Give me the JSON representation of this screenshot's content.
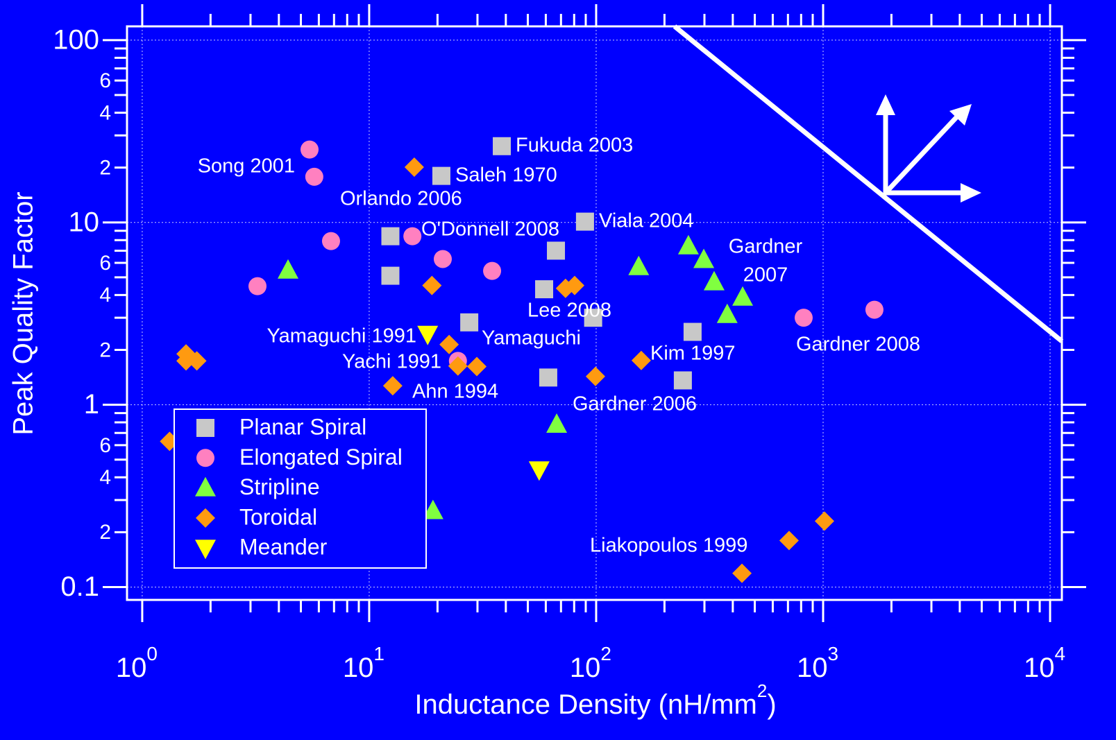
{
  "chart_data": {
    "type": "scatter",
    "ylabel": "Peak Quality Factor",
    "xlabel": "Inductance Density (nH/mm",
    "xlabel_sup": "2",
    "xlabel_end": ")",
    "xscale": "log",
    "yscale": "log",
    "xlim": [
      0.857,
      11270
    ],
    "ylim": [
      0.085,
      119
    ],
    "xticks": [
      {
        "value": 1,
        "label": "10",
        "sup": "0"
      },
      {
        "value": 10,
        "label": "10",
        "sup": "1"
      },
      {
        "value": 100,
        "label": "10",
        "sup": "2"
      },
      {
        "value": 1000,
        "label": "10",
        "sup": "3"
      },
      {
        "value": 10000,
        "label": "10",
        "sup": "4"
      }
    ],
    "xminorticks": [
      2,
      3,
      4,
      5,
      6,
      7,
      8,
      9,
      20,
      30,
      40,
      50,
      60,
      70,
      80,
      90,
      200,
      300,
      400,
      500,
      600,
      700,
      800,
      900,
      2000,
      3000,
      4000,
      5000,
      6000,
      7000,
      8000,
      9000
    ],
    "yticks": [
      0.1,
      {
        "value": 0.2,
        "label": "2"
      },
      {
        "value": 0.4,
        "label": "4"
      },
      {
        "value": 0.6,
        "label": "6"
      },
      1,
      2,
      4,
      6,
      10,
      {
        "value": 20,
        "label": "2"
      },
      {
        "value": 40,
        "label": "4"
      },
      {
        "value": 60,
        "label": "6"
      },
      100
    ],
    "yminorticks": [
      0.3,
      0.5,
      0.7,
      0.8,
      0.9,
      3,
      5,
      7,
      8,
      9,
      30,
      50,
      70,
      80,
      90
    ],
    "grid": true,
    "legend": "lower left",
    "series": [
      {
        "name": "Planar Spiral",
        "color": "#c8c8c8",
        "marker": "square",
        "x": [
          38.4,
          20.8,
          89.3,
          12.4,
          66.5,
          12.4,
          59,
          27.6,
          97,
          266,
          61.5,
          241
        ],
        "values": [
          26.2,
          18.0,
          10.1,
          8.4,
          7.0,
          5.1,
          4.3,
          2.83,
          3.0,
          2.51,
          1.41,
          1.36
        ]
      },
      {
        "name": "Elongated Spiral",
        "color": "#ff80c0",
        "marker": "circle",
        "x": [
          5.46,
          5.73,
          6.79,
          3.22,
          15.5,
          21.1,
          34.8,
          24.6,
          821,
          1683
        ],
        "values": [
          25.1,
          17.8,
          7.9,
          4.47,
          8.4,
          6.3,
          5.42,
          1.74,
          3.0,
          3.32
        ]
      },
      {
        "name": "Stripline",
        "color": "#80ff40",
        "marker": "triangle-up",
        "x": [
          4.39,
          154,
          255,
          298,
          331,
          442,
          378,
          67,
          19.1
        ],
        "values": [
          5.46,
          5.71,
          7.42,
          6.24,
          4.71,
          3.88,
          3.12,
          0.78,
          0.262
        ]
      },
      {
        "name": "Toroidal",
        "color": "#ff9a10",
        "marker": "diamond",
        "x": [
          15.8,
          18.9,
          73.3,
          80.4,
          22.5,
          24.6,
          29.8,
          12.7,
          99.3,
          158,
          1.56,
          1.56,
          1.74,
          1.32,
          708,
          1014,
          439
        ],
        "values": [
          20.1,
          4.51,
          4.35,
          4.51,
          2.14,
          1.63,
          1.62,
          1.27,
          1.43,
          1.75,
          1.9,
          1.74,
          1.74,
          0.63,
          0.18,
          0.23,
          0.119
        ]
      },
      {
        "name": "Meander",
        "color": "#ffff00",
        "marker": "triangle-down",
        "x": [
          18.1,
          56.1
        ],
        "values": [
          2.44,
          0.44
        ]
      }
    ],
    "annotations": [
      {
        "text": "Fukuda 2003",
        "color": "#ffffff"
      },
      {
        "text": "Saleh 1970",
        "color": "#ffffff"
      },
      {
        "text": "Viala 2004",
        "color": "#ffffff"
      },
      {
        "text": "Song 2001",
        "color": "#ff99cc"
      },
      {
        "text": "Orlando 2006",
        "color": "#ffa030"
      },
      {
        "text": "O'Donnell 2008",
        "color": "#ff99cc"
      },
      {
        "text": "Gardner",
        "color": "#80ff40"
      },
      {
        "text": "2007",
        "color": "#80ff40"
      },
      {
        "text": "Lee 2008",
        "color": "#ffa030"
      },
      {
        "text": "Yamaguchi 1991",
        "color": "#ffff00"
      },
      {
        "text": "Yamaguchi",
        "color": "#ffffff"
      },
      {
        "text": "Kim 1997",
        "color": "#ffffff"
      },
      {
        "text": "Gardner 2008",
        "color": "#ff99cc"
      },
      {
        "text": "Yachi 1991",
        "color": "#ffa030"
      },
      {
        "text": "Ahn 1994",
        "color": "#ffa030"
      },
      {
        "text": "Gardner 2006",
        "color": "#ffffff"
      },
      {
        "text": "Liakopoulos 1999",
        "color": "#ffa030"
      }
    ]
  }
}
